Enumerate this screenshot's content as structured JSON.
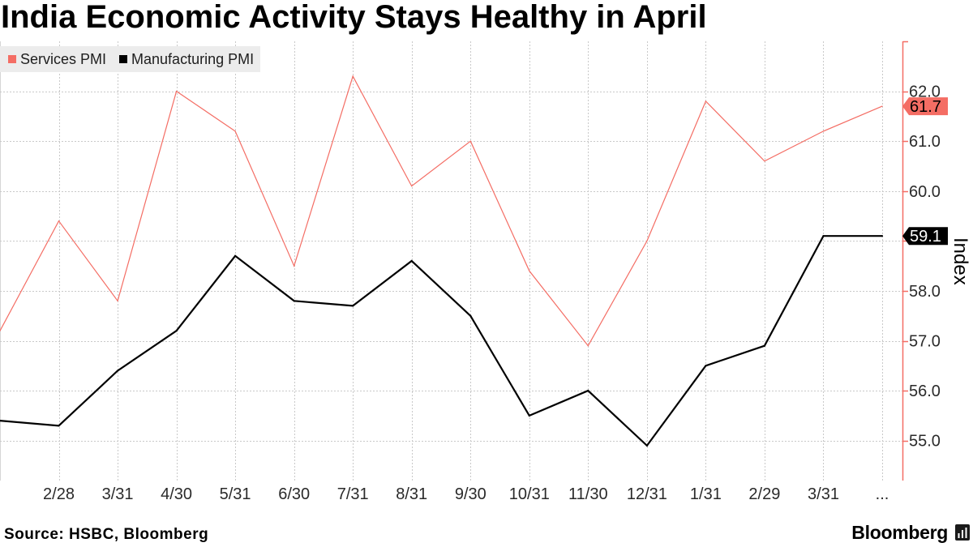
{
  "chart_data": {
    "type": "line",
    "title": "India Economic Activity Stays Healthy in April",
    "categories": [
      "",
      "2/28",
      "3/31",
      "4/30",
      "5/31",
      "6/30",
      "7/31",
      "8/31",
      "9/30",
      "10/31",
      "11/30",
      "12/31",
      "1/31",
      "2/29",
      "3/31",
      "..."
    ],
    "series": [
      {
        "name": "Services PMI",
        "color": "#f46d64",
        "values": [
          57.2,
          59.4,
          57.8,
          62.0,
          61.2,
          58.5,
          62.3,
          60.1,
          61.0,
          58.4,
          56.9,
          59.0,
          61.8,
          60.6,
          61.2,
          61.7
        ],
        "last_value_label": "61.7"
      },
      {
        "name": "Manufacturing PMI",
        "color": "#000000",
        "values": [
          55.4,
          55.3,
          56.4,
          57.2,
          58.7,
          57.8,
          57.7,
          58.6,
          57.5,
          55.5,
          56.0,
          54.9,
          56.5,
          56.9,
          59.1,
          59.1
        ],
        "last_value_label": "59.1"
      }
    ],
    "ylabel": "Index",
    "ylim": [
      54.2,
      63.0
    ],
    "y_ticks": [
      55,
      56,
      57,
      58,
      59,
      60,
      61,
      62
    ],
    "y_tick_labels": [
      "55.0",
      "56.0",
      "57.0",
      "58.0",
      "",
      "60.0",
      "61.0",
      "62.0"
    ],
    "y_axis_side": "right",
    "y_axis_color": "#f46d64",
    "grid": true,
    "legend_position": "top-left",
    "source": "Source: HSBC, Bloomberg"
  },
  "branding": {
    "logo_text": "Bloomberg",
    "logo_icon": "bloomberg-terminal-icon"
  }
}
